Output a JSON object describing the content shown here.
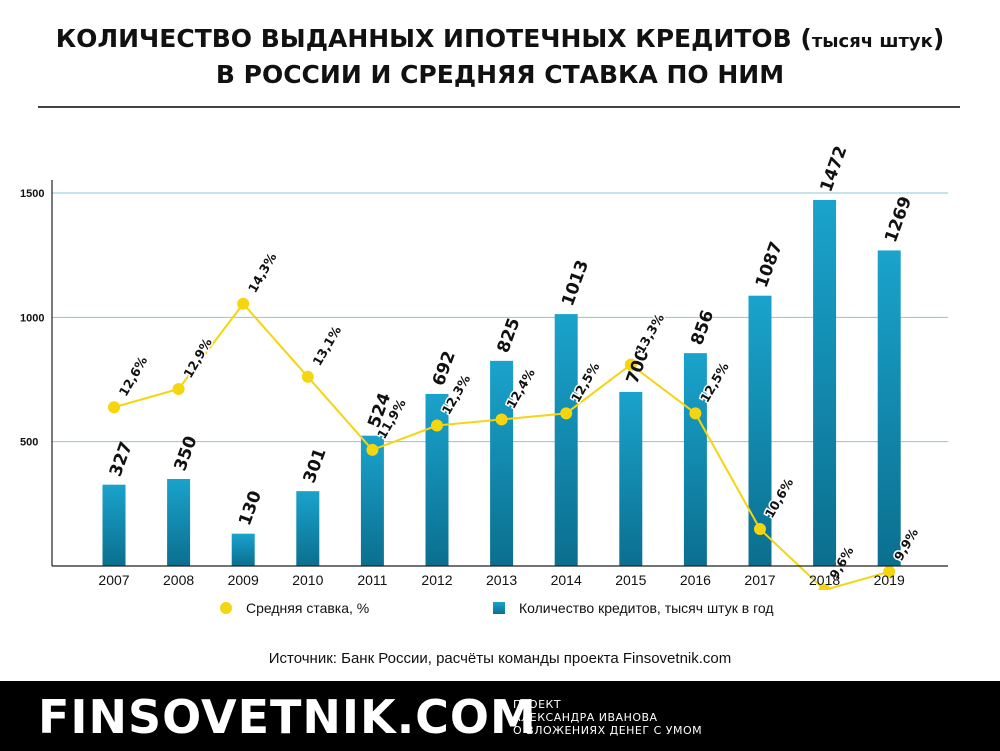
{
  "title": {
    "line1_main": "КОЛИЧЕСТВО ВЫДАННЫХ ИПОТЕЧНЫХ КРЕДИТОВ (",
    "line1_small": "тысяч штук",
    "line1_end": ")",
    "line2": "В РОССИИ И СРЕДНЯЯ СТАВКА ПО НИМ"
  },
  "chart_data": {
    "type": "bar",
    "categories": [
      "2007",
      "2008",
      "2009",
      "2010",
      "2011",
      "2012",
      "2013",
      "2014",
      "2015",
      "2016",
      "2017",
      "2018",
      "2019"
    ],
    "series": [
      {
        "name": "Количество кредитов, тысяч штук в год",
        "type": "bar",
        "values": [
          327,
          350,
          130,
          301,
          524,
          692,
          825,
          1013,
          700,
          856,
          1087,
          1472,
          1269
        ]
      },
      {
        "name": "Средняя ставка, %",
        "type": "line",
        "values": [
          12.6,
          12.9,
          14.3,
          13.1,
          11.9,
          12.3,
          12.4,
          12.5,
          13.3,
          12.5,
          10.6,
          9.6,
          9.9
        ],
        "labels": [
          "12,6%",
          "12,9%",
          "14,3%",
          "13,1%",
          "11,9%",
          "12,3%",
          "12,4%",
          "12,5%",
          "13,3%",
          "12,5%",
          "10,6%",
          "9,6%",
          "9,9%"
        ]
      }
    ],
    "yticks": [
      500,
      1000,
      1500
    ],
    "ylim": [
      0,
      1500
    ],
    "grid": true,
    "legend_position": "bottom",
    "colors": {
      "bar_top": "#1aa3cc",
      "bar_bottom": "#0b6f8f",
      "line": "#f5d410",
      "grid": "#8ac7d6"
    }
  },
  "legend": {
    "rate_label": "Средняя ставка, %",
    "count_label": "Количество кредитов, тысяч штук в год"
  },
  "source": "Источник: Банк России, расчёты команды проекта Finsovetnik.com",
  "footer": {
    "brand": "FINSOVETNIK.COM",
    "tagline_1": "ПРОЕКТ",
    "tagline_2": "АЛЕКСАНДРА ИВАНОВА",
    "tagline_3": "О ВЛОЖЕНИЯХ ДЕНЕГ С УМОМ"
  }
}
